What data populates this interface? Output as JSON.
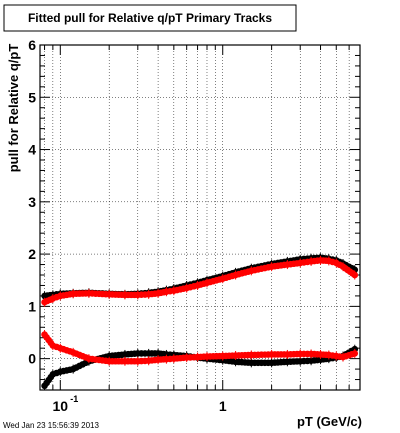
{
  "chart_data": {
    "type": "scatter",
    "title": "Fitted pull for Relative q/pT  Primary Tracks",
    "xlabel": "pT (GeV/c)",
    "ylabel": "pull for Relative q/pT",
    "x_scale": "log",
    "xlim": [
      0.075,
      7.0
    ],
    "ylim": [
      -0.6,
      6.0
    ],
    "grid": true,
    "x_tick_labels": [
      {
        "value": 0.1,
        "base": "10",
        "exp": "-1"
      },
      {
        "value": 1,
        "base": "1",
        "exp": ""
      }
    ],
    "y_ticks": [
      0,
      1,
      2,
      3,
      4,
      5,
      6
    ],
    "timestamp": "Wed Jan 23 15:56:39 2013",
    "colors": {
      "series_black": "#000000",
      "series_red": "#ff0000"
    },
    "series": [
      {
        "color": "black",
        "x": [
          0.08,
          0.09,
          0.1,
          0.12,
          0.15,
          0.2,
          0.25,
          0.3,
          0.35,
          0.4,
          0.45,
          0.5,
          0.6,
          0.7,
          0.8,
          1.0,
          1.2,
          1.5,
          2.0,
          2.5,
          3.0,
          3.5,
          4.0,
          4.5,
          5.0,
          5.5,
          6.5
        ],
        "y": [
          1.2,
          1.22,
          1.24,
          1.25,
          1.26,
          1.24,
          1.23,
          1.24,
          1.26,
          1.28,
          1.31,
          1.34,
          1.4,
          1.45,
          1.5,
          1.58,
          1.65,
          1.73,
          1.81,
          1.86,
          1.9,
          1.92,
          1.93,
          1.91,
          1.88,
          1.82,
          1.7
        ]
      },
      {
        "color": "red",
        "x": [
          0.08,
          0.09,
          0.1,
          0.12,
          0.15,
          0.2,
          0.25,
          0.3,
          0.35,
          0.4,
          0.45,
          0.5,
          0.6,
          0.7,
          0.8,
          1.0,
          1.2,
          1.5,
          2.0,
          2.5,
          3.0,
          3.5,
          4.0,
          4.5,
          5.0,
          5.5,
          6.5
        ],
        "y": [
          1.08,
          1.15,
          1.2,
          1.24,
          1.25,
          1.23,
          1.22,
          1.22,
          1.23,
          1.25,
          1.28,
          1.3,
          1.35,
          1.4,
          1.45,
          1.53,
          1.6,
          1.68,
          1.76,
          1.8,
          1.83,
          1.86,
          1.88,
          1.87,
          1.83,
          1.76,
          1.6
        ]
      },
      {
        "color": "black",
        "x": [
          0.08,
          0.09,
          0.1,
          0.12,
          0.15,
          0.2,
          0.25,
          0.3,
          0.35,
          0.4,
          0.45,
          0.5,
          0.6,
          0.7,
          0.8,
          1.0,
          1.2,
          1.5,
          2.0,
          2.5,
          3.0,
          3.5,
          4.0,
          4.5,
          5.0,
          5.5,
          6.5
        ],
        "y": [
          -0.52,
          -0.3,
          -0.25,
          -0.2,
          -0.05,
          0.05,
          0.08,
          0.1,
          0.1,
          0.1,
          0.08,
          0.07,
          0.05,
          0.02,
          0.0,
          -0.03,
          -0.06,
          -0.08,
          -0.08,
          -0.06,
          -0.05,
          -0.04,
          -0.02,
          0.0,
          0.02,
          0.05,
          0.18
        ]
      },
      {
        "color": "red",
        "x": [
          0.08,
          0.09,
          0.1,
          0.12,
          0.15,
          0.2,
          0.25,
          0.3,
          0.35,
          0.4,
          0.45,
          0.5,
          0.6,
          0.7,
          0.8,
          1.0,
          1.2,
          1.5,
          2.0,
          2.5,
          3.0,
          3.5,
          4.0,
          4.5,
          5.0,
          5.5,
          6.5
        ],
        "y": [
          0.46,
          0.25,
          0.2,
          0.12,
          0.0,
          -0.05,
          -0.05,
          -0.05,
          -0.04,
          -0.02,
          -0.01,
          0.0,
          0.02,
          0.03,
          0.04,
          0.05,
          0.06,
          0.07,
          0.08,
          0.08,
          0.09,
          0.09,
          0.08,
          0.07,
          0.05,
          0.03,
          0.1
        ]
      }
    ]
  }
}
